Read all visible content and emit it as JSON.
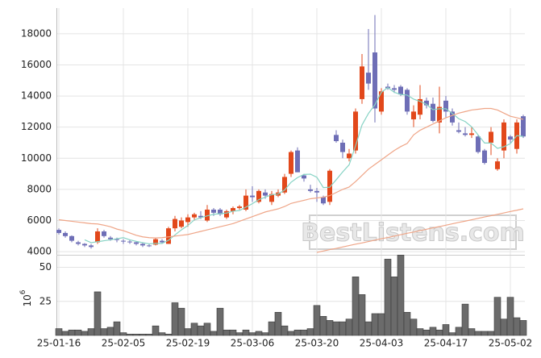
{
  "chart_data": {
    "type": "candlestick",
    "watermark": "BestListens.com",
    "categories": [
      "25-01-16",
      null,
      null,
      null,
      null,
      null,
      null,
      null,
      null,
      null,
      "25-02-05",
      null,
      null,
      null,
      null,
      null,
      null,
      null,
      null,
      null,
      "25-02-19",
      null,
      null,
      null,
      null,
      null,
      null,
      null,
      null,
      null,
      "25-03-06",
      null,
      null,
      null,
      null,
      null,
      null,
      null,
      null,
      null,
      "25-03-20",
      null,
      null,
      null,
      null,
      null,
      null,
      null,
      null,
      null,
      "25-04-03",
      null,
      null,
      null,
      null,
      null,
      null,
      null,
      null,
      null,
      "25-04-17",
      null,
      null,
      null,
      null,
      null,
      null,
      null,
      null,
      null,
      "25-05-02",
      null,
      null
    ],
    "open": [
      5400,
      5200,
      5000,
      4600,
      4500,
      4400,
      4600,
      5300,
      4900,
      4800,
      4700,
      4650,
      4600,
      4500,
      4400,
      4450,
      4700,
      4500,
      5500,
      5600,
      5900,
      6200,
      6300,
      6000,
      6700,
      6700,
      6200,
      6600,
      6800,
      6700,
      7600,
      7200,
      7800,
      7200,
      7600,
      7800,
      9000,
      10500,
      8900,
      8000,
      7900,
      7500,
      7200,
      11500,
      11000,
      10000,
      10500,
      13800,
      15500,
      16800,
      13000,
      14600,
      14500,
      14600,
      14400,
      12500,
      12800,
      13700,
      13500,
      12300,
      13700,
      13000,
      11800,
      11600,
      11500,
      11400,
      10500,
      11000,
      9300,
      10500,
      11400,
      10600,
      12700
    ],
    "high": [
      5500,
      5300,
      5050,
      4700,
      4550,
      4500,
      5500,
      5400,
      5000,
      4900,
      4800,
      4750,
      4650,
      4600,
      4500,
      4900,
      4800,
      5600,
      6300,
      6200,
      6400,
      6500,
      6600,
      7000,
      6800,
      6800,
      6700,
      6900,
      7000,
      8000,
      8200,
      8000,
      8000,
      7900,
      8000,
      9000,
      10500,
      10700,
      9000,
      8300,
      8100,
      7600,
      9300,
      11800,
      11200,
      10600,
      13200,
      16700,
      18300,
      19200,
      14500,
      14800,
      14700,
      14700,
      14500,
      13400,
      14700,
      13900,
      13900,
      14600,
      14000,
      13200,
      12300,
      12000,
      12000,
      11500,
      10600,
      12000,
      10000,
      12500,
      11500,
      12500,
      12800
    ],
    "low": [
      5100,
      4900,
      4600,
      4400,
      4300,
      4200,
      4500,
      4900,
      4700,
      4600,
      4500,
      4500,
      4400,
      4300,
      4300,
      4400,
      4500,
      4500,
      5300,
      5500,
      5600,
      6000,
      6100,
      5900,
      6300,
      6300,
      6100,
      6400,
      6700,
      6600,
      7200,
      7100,
      7400,
      7000,
      7500,
      7700,
      8800,
      9200,
      8500,
      7800,
      7200,
      7000,
      7000,
      11000,
      10000,
      9800,
      10300,
      13500,
      14400,
      12300,
      12800,
      14400,
      14200,
      14000,
      12800,
      12000,
      12500,
      13200,
      12300,
      11600,
      12600,
      12100,
      11600,
      11400,
      11300,
      10300,
      9600,
      10200,
      9200,
      10000,
      11000,
      10300,
      11300
    ],
    "close": [
      5200,
      5000,
      4700,
      4500,
      4400,
      4300,
      5300,
      5000,
      4800,
      4750,
      4650,
      4600,
      4500,
      4400,
      4350,
      4800,
      4600,
      5500,
      6100,
      6000,
      6200,
      6400,
      6200,
      6700,
      6500,
      6400,
      6600,
      6800,
      6900,
      7600,
      7500,
      7900,
      7600,
      7700,
      7800,
      8800,
      10400,
      9100,
      8700,
      7900,
      7800,
      7100,
      9200,
      11100,
      10400,
      10300,
      13000,
      15900,
      14800,
      13200,
      14300,
      14500,
      14400,
      14100,
      13000,
      13000,
      13800,
      13400,
      12400,
      13300,
      13000,
      12300,
      11700,
      11500,
      11600,
      10400,
      9700,
      11700,
      9800,
      12300,
      11200,
      12300,
      11400
    ],
    "volume": [
      5,
      3,
      4,
      4,
      3,
      5,
      32,
      5,
      6,
      10,
      2,
      1,
      1,
      1,
      1,
      7,
      2,
      1,
      24,
      20,
      5,
      9,
      7,
      9,
      3,
      20,
      4,
      4,
      2,
      4,
      2,
      3,
      2,
      10,
      17,
      7,
      3,
      4,
      4,
      5,
      22,
      14,
      11,
      10,
      10,
      12,
      43,
      30,
      10,
      16,
      16,
      56,
      43,
      59,
      17,
      12,
      5,
      4,
      6,
      4,
      8,
      2,
      6,
      23,
      5,
      3,
      3,
      3,
      28,
      12,
      28,
      13,
      11
    ],
    "up_color": "#e2481b",
    "down_color": "#6e6eb6",
    "volume_color": "#6b6b6b",
    "lines": [
      {
        "color": "#86d3c4",
        "values": [
          null,
          null,
          null,
          null,
          4760,
          4580,
          4640,
          4700,
          4760,
          4830,
          4900,
          4760,
          4660,
          4580,
          4500,
          4530,
          4530,
          4730,
          5070,
          5400,
          5680,
          6040,
          6180,
          6300,
          6400,
          6440,
          6480,
          6600,
          6640,
          6860,
          7080,
          7340,
          7500,
          7660,
          7700,
          7960,
          8460,
          8760,
          8960,
          8980,
          8780,
          8120,
          8140,
          8620,
          9120,
          9580,
          10800,
          12140,
          12880,
          13440,
          14240,
          14540,
          14240,
          14100,
          14060,
          13800,
          13660,
          13460,
          13120,
          13180,
          13180,
          12880,
          12540,
          12360,
          12020,
          11500,
          10980,
          10980,
          10640,
          10740,
          10940,
          11460,
          11400
        ]
      },
      {
        "color": "#efa587",
        "values": [
          6050,
          6000,
          5950,
          5900,
          5850,
          5800,
          5780,
          5700,
          5600,
          5450,
          5350,
          5200,
          5050,
          4950,
          4900,
          4880,
          4900,
          4950,
          5000,
          5050,
          5100,
          5200,
          5300,
          5400,
          5500,
          5600,
          5700,
          5800,
          5950,
          6100,
          6250,
          6400,
          6550,
          6650,
          6750,
          6900,
          7100,
          7200,
          7300,
          7400,
          7450,
          7500,
          7600,
          7800,
          8000,
          8150,
          8500,
          8900,
          9300,
          9600,
          9900,
          10200,
          10500,
          10750,
          10950,
          11500,
          11800,
          12000,
          12200,
          12400,
          12600,
          12750,
          12900,
          13000,
          13100,
          13150,
          13200,
          13200,
          13100,
          12900,
          12700,
          12600,
          12500
        ]
      },
      {
        "color": "#efa587",
        "values": [
          null,
          null,
          null,
          null,
          null,
          null,
          null,
          null,
          null,
          null,
          null,
          null,
          null,
          null,
          null,
          null,
          null,
          null,
          null,
          null,
          null,
          null,
          null,
          null,
          null,
          null,
          null,
          null,
          null,
          null,
          null,
          null,
          null,
          null,
          null,
          null,
          null,
          null,
          null,
          null,
          3950,
          4040,
          4130,
          4210,
          4300,
          4390,
          4480,
          4560,
          4650,
          4740,
          4830,
          4910,
          5000,
          5090,
          5180,
          5260,
          5350,
          5440,
          5530,
          5610,
          5700,
          5790,
          5880,
          5960,
          6050,
          6140,
          6230,
          6310,
          6400,
          6490,
          6580,
          6660,
          6750
        ]
      }
    ],
    "ylim": [
      3850,
      19650
    ],
    "yticks": [
      4000,
      6000,
      8000,
      10000,
      12000,
      14000,
      16000,
      18000
    ],
    "volume_ylim": [
      0,
      58
    ],
    "volume_yticks": [
      25,
      50
    ],
    "volume_axis_label": {
      "base": "10",
      "exponent": "6"
    },
    "grid": true
  }
}
